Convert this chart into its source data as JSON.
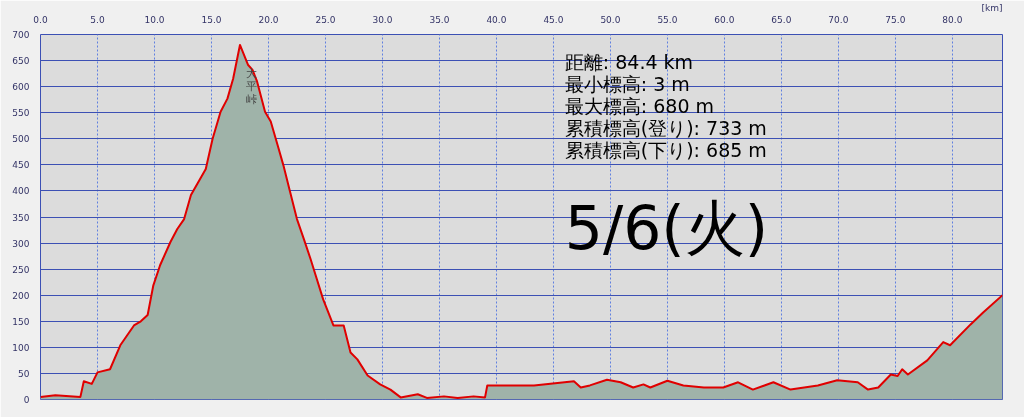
{
  "chart_data": {
    "type": "area",
    "xlabel": "[km]",
    "x": [
      0,
      1.3,
      3.5,
      3.8,
      4.5,
      5.0,
      6.1,
      7.0,
      8.2,
      8.8,
      9.4,
      9.9,
      10.5,
      11.4,
      12.0,
      12.6,
      13.2,
      14.0,
      14.5,
      15.1,
      15.8,
      16.4,
      16.9,
      17.5,
      18.2,
      18.6,
      19.0,
      19.7,
      20.2,
      20.8,
      21.3,
      21.9,
      22.5,
      23.1,
      23.7,
      24.8,
      25.7,
      26.6,
      27.2,
      27.8,
      28.7,
      29.8,
      30.7,
      31.6,
      33.1,
      33.9,
      35.4,
      36.6,
      38.0,
      39.0,
      39.2,
      43.3,
      46.8,
      47.4,
      48.2,
      49.7,
      50.9,
      52.0,
      52.9,
      53.5,
      55.0,
      56.4,
      58.2,
      59.9,
      61.2,
      62.5,
      64.3,
      65.8,
      68.2,
      69.9,
      71.7,
      72.6,
      73.5,
      74.6,
      75.2,
      75.6,
      76.1,
      77.8,
      79.2,
      79.8,
      81.6,
      82.7,
      84.4
    ],
    "series": [
      {
        "color": "#e00000",
        "values": [
          5,
          8,
          5,
          35,
          30,
          52,
          58,
          104,
          142,
          150,
          162,
          219,
          258,
          302,
          327,
          346,
          392,
          423,
          442,
          500,
          552,
          577,
          615,
          680,
          642,
          632,
          610,
          552,
          533,
          488,
          450,
          398,
          346,
          308,
          269,
          192,
          142,
          142,
          90,
          77,
          46,
          29,
          19,
          4,
          10,
          3,
          6,
          3,
          6,
          4,
          27,
          27,
          35,
          23,
          27,
          38,
          33,
          23,
          29,
          23,
          36,
          27,
          23,
          23,
          33,
          19,
          33,
          19,
          27,
          37,
          33,
          19,
          23,
          48,
          45,
          58,
          48,
          75,
          110,
          104,
          144,
          167,
          200
        ]
      }
    ],
    "xlim": [
      0,
      84.4
    ],
    "ylim": [
      0,
      700
    ],
    "xticks": [
      {
        "value": 0,
        "label": "0.0"
      },
      {
        "value": 5,
        "label": "5.0"
      },
      {
        "value": 10,
        "label": "10.0"
      },
      {
        "value": 15,
        "label": "15.0"
      },
      {
        "value": 20,
        "label": "20.0"
      },
      {
        "value": 25,
        "label": "25.0"
      },
      {
        "value": 30,
        "label": "30.0"
      },
      {
        "value": 35,
        "label": "35.0"
      },
      {
        "value": 40,
        "label": "40.0"
      },
      {
        "value": 45,
        "label": "45.0"
      },
      {
        "value": 50,
        "label": "50.0"
      },
      {
        "value": 55,
        "label": "55.0"
      },
      {
        "value": 60,
        "label": "60.0"
      },
      {
        "value": 65,
        "label": "65.0"
      },
      {
        "value": 70,
        "label": "70.0"
      },
      {
        "value": 75,
        "label": "75.0"
      },
      {
        "value": 80,
        "label": "80.0"
      }
    ],
    "yticks": [
      0,
      50,
      100,
      150,
      200,
      250,
      300,
      350,
      400,
      450,
      500,
      550,
      600,
      650,
      700
    ],
    "grid": true,
    "annotations": [
      "大平峠",
      "距離: 84.4 km",
      "最小標高: 3 m",
      "最大標高: 680 m",
      "累積標高(登り): 733 m",
      "累積標高(下り): 685 m",
      "5/6(火)"
    ]
  }
}
